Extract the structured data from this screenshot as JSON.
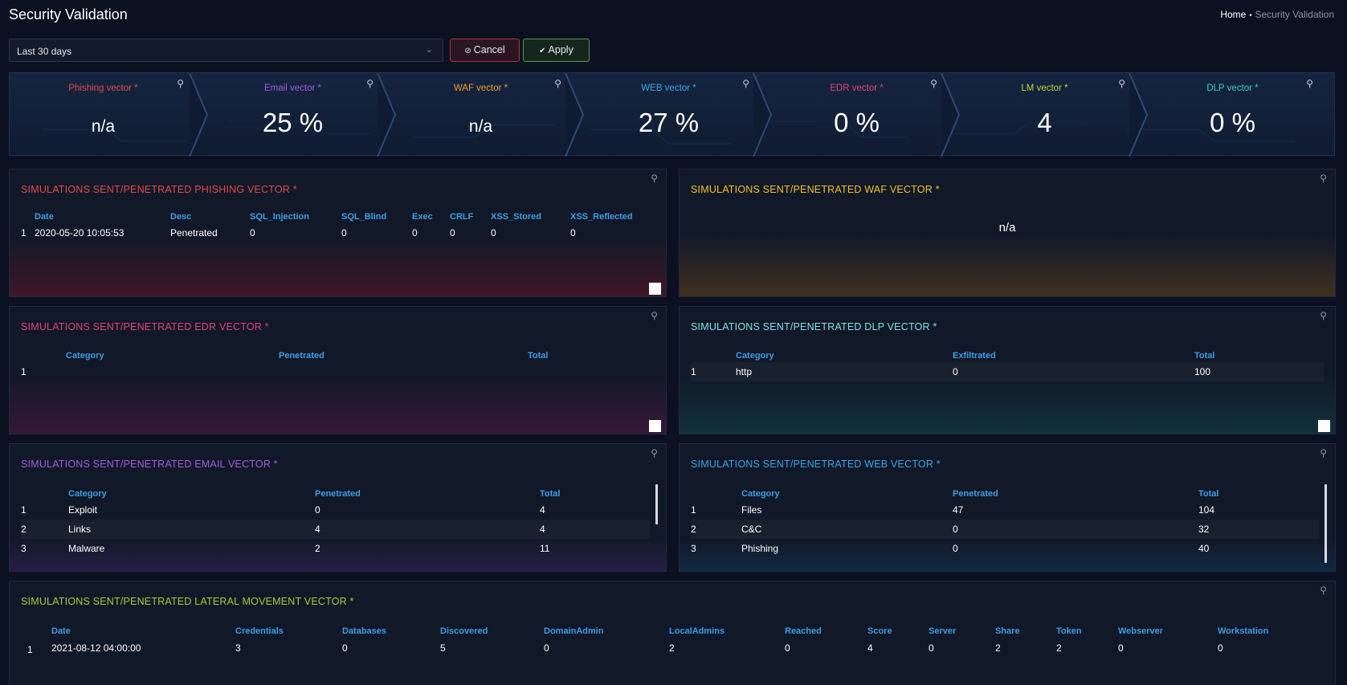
{
  "header": {
    "title": "Security Validation",
    "breadcrumb_home": "Home",
    "breadcrumb_separator": "•",
    "breadcrumb_current": "Security Validation"
  },
  "filter": {
    "range_value": "Last 30 days",
    "cancel_label": "Cancel",
    "apply_label": "Apply"
  },
  "vectors": [
    {
      "label": "Phishing vector *",
      "value": "n/a",
      "color": "#e04b4b"
    },
    {
      "label": "Email vector *",
      "value": "25 %",
      "color": "#a35ce0"
    },
    {
      "label": "WAF vector *",
      "value": "n/a",
      "color": "#f29a2a"
    },
    {
      "label": "WEB vector *",
      "value": "27 %",
      "color": "#3aa6e8"
    },
    {
      "label": "EDR vector *",
      "value": "0 %",
      "color": "#e0447a"
    },
    {
      "label": "LM vector *",
      "value": "4",
      "color": "#b8d43a"
    },
    {
      "label": "DLP vector *",
      "value": "0 %",
      "color": "#3ad0b0"
    }
  ],
  "panels": {
    "phishing": {
      "title": "SIMULATIONS SENT/PENETRATED PHISHING VECTOR *",
      "color": "#e04b4b",
      "columns": [
        "Date",
        "Desc",
        "SQL_Injection",
        "SQL_Blind",
        "Exec",
        "CRLF",
        "XSS_Stored",
        "XSS_Reflected"
      ],
      "rows": [
        [
          "1",
          "2020-05-20 10:05:53",
          "Penetrated",
          "0",
          "0",
          "0",
          "0",
          "0",
          "0"
        ]
      ]
    },
    "waf": {
      "title": "SIMULATIONS SENT/PENETRATED WAF VECTOR *",
      "color": "#f2c230",
      "value": "n/a"
    },
    "edr": {
      "title": "SIMULATIONS SENT/PENETRATED EDR VECTOR *",
      "color": "#e0447a",
      "columns": [
        "Category",
        "Penetrated",
        "Total"
      ],
      "rows": [
        [
          "1",
          "",
          "",
          ""
        ]
      ]
    },
    "dlp": {
      "title": "SIMULATIONS SENT/PENETRATED DLP VECTOR *",
      "color": "#7fe0e8",
      "columns": [
        "Category",
        "Exfiltrated",
        "Total"
      ],
      "rows": [
        [
          "1",
          "http",
          "0",
          "100"
        ]
      ]
    },
    "email": {
      "title": "SIMULATIONS SENT/PENETRATED EMAIL VECTOR *",
      "color": "#a35ce0",
      "columns": [
        "Category",
        "Penetrated",
        "Total"
      ],
      "rows": [
        [
          "1",
          "Exploit",
          "0",
          "4"
        ],
        [
          "2",
          "Links",
          "4",
          "4"
        ],
        [
          "3",
          "Malware",
          "2",
          "11"
        ]
      ]
    },
    "web": {
      "title": "SIMULATIONS SENT/PENETRATED WEB VECTOR *",
      "color": "#3aa6e8",
      "columns": [
        "Category",
        "Penetrated",
        "Total"
      ],
      "rows": [
        [
          "1",
          "Files",
          "47",
          "104"
        ],
        [
          "2",
          "C&C",
          "0",
          "32"
        ],
        [
          "3",
          "Phishing",
          "0",
          "40"
        ]
      ]
    },
    "lateral": {
      "title": "SIMULATIONS SENT/PENETRATED LATERAL MOVEMENT VECTOR *",
      "color": "#a8cc3a",
      "columns": [
        "Date",
        "Credentials",
        "Databases",
        "Discovered",
        "DomainAdmin",
        "LocalAdmins",
        "Reached",
        "Score",
        "Server",
        "Share",
        "Token",
        "Webserver",
        "Workstation"
      ],
      "rows": [
        [
          "1",
          "2021-08-12 04:00:00",
          "3",
          "0",
          "5",
          "0",
          "2",
          "0",
          "4",
          "0",
          "2",
          "2",
          "0",
          "0"
        ]
      ]
    }
  }
}
